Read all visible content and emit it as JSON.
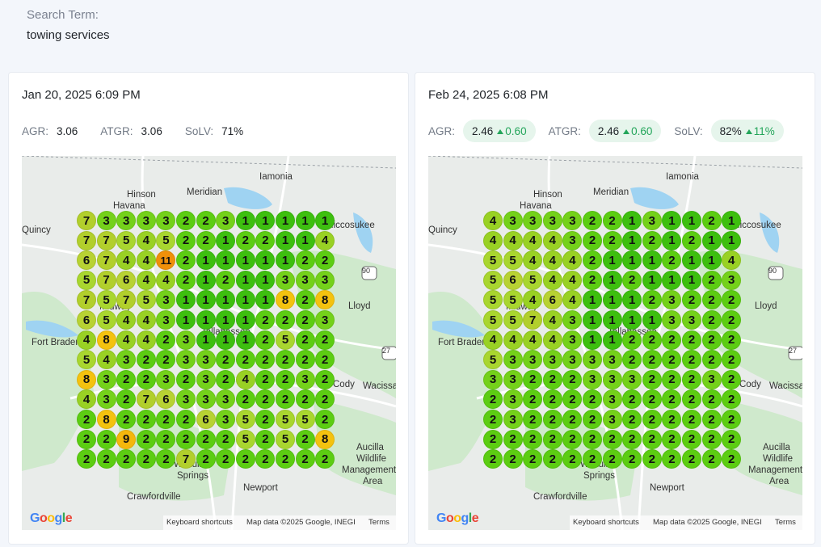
{
  "search": {
    "label": "Search Term:",
    "value": "towing services"
  },
  "panels": [
    {
      "date": "Jan 20, 2025 6:09 PM",
      "metrics": [
        {
          "label": "AGR:",
          "value": "3.06",
          "delta": ""
        },
        {
          "label": "ATGR:",
          "value": "3.06",
          "delta": ""
        },
        {
          "label": "SoLV:",
          "value": "71%",
          "delta": ""
        }
      ],
      "grid": [
        [
          7,
          3,
          3,
          3,
          3,
          2,
          2,
          3,
          1,
          1,
          1,
          1,
          1
        ],
        [
          7,
          7,
          5,
          4,
          5,
          2,
          2,
          1,
          2,
          2,
          1,
          1,
          4
        ],
        [
          6,
          7,
          4,
          4,
          11,
          2,
          1,
          1,
          1,
          1,
          1,
          2,
          2
        ],
        [
          5,
          7,
          6,
          4,
          4,
          2,
          1,
          2,
          1,
          1,
          3,
          3,
          3
        ],
        [
          7,
          5,
          7,
          5,
          3,
          1,
          1,
          1,
          1,
          1,
          8,
          2,
          8
        ],
        [
          6,
          5,
          4,
          4,
          3,
          1,
          1,
          1,
          1,
          2,
          2,
          2,
          3
        ],
        [
          4,
          8,
          4,
          4,
          2,
          3,
          1,
          1,
          1,
          2,
          5,
          2,
          2
        ],
        [
          5,
          4,
          3,
          2,
          2,
          3,
          3,
          2,
          2,
          2,
          2,
          2,
          2
        ],
        [
          8,
          3,
          2,
          2,
          3,
          2,
          3,
          2,
          4,
          2,
          2,
          3,
          2
        ],
        [
          4,
          3,
          2,
          7,
          6,
          3,
          3,
          3,
          2,
          2,
          2,
          2,
          2
        ],
        [
          2,
          8,
          2,
          2,
          2,
          2,
          6,
          3,
          5,
          2,
          5,
          5,
          2
        ],
        [
          2,
          2,
          9,
          2,
          2,
          2,
          2,
          2,
          5,
          2,
          5,
          2,
          8
        ],
        [
          2,
          2,
          2,
          2,
          2,
          7,
          2,
          2,
          2,
          2,
          2,
          2,
          2
        ]
      ]
    },
    {
      "date": "Feb 24, 2025 6:08 PM",
      "metrics": [
        {
          "label": "AGR:",
          "value": "2.46",
          "delta": "0.60"
        },
        {
          "label": "ATGR:",
          "value": "2.46",
          "delta": "0.60"
        },
        {
          "label": "SoLV:",
          "value": "82%",
          "delta": "11%"
        }
      ],
      "grid": [
        [
          4,
          3,
          3,
          3,
          3,
          2,
          2,
          1,
          3,
          1,
          1,
          2,
          1
        ],
        [
          4,
          4,
          4,
          4,
          3,
          2,
          2,
          1,
          2,
          1,
          2,
          1,
          1
        ],
        [
          5,
          5,
          4,
          4,
          4,
          2,
          1,
          1,
          1,
          2,
          1,
          1,
          4
        ],
        [
          5,
          6,
          5,
          4,
          4,
          2,
          1,
          2,
          1,
          1,
          1,
          2,
          3
        ],
        [
          5,
          5,
          4,
          6,
          4,
          1,
          1,
          1,
          2,
          3,
          2,
          2,
          2
        ],
        [
          5,
          5,
          7,
          4,
          3,
          1,
          1,
          1,
          1,
          3,
          3,
          2,
          2
        ],
        [
          4,
          4,
          4,
          4,
          3,
          1,
          1,
          2,
          2,
          2,
          2,
          2,
          2
        ],
        [
          5,
          3,
          3,
          3,
          3,
          3,
          3,
          2,
          2,
          2,
          2,
          2,
          2
        ],
        [
          3,
          3,
          2,
          2,
          2,
          3,
          3,
          3,
          2,
          2,
          2,
          3,
          2
        ],
        [
          2,
          3,
          2,
          2,
          2,
          2,
          3,
          2,
          2,
          2,
          2,
          2,
          2
        ],
        [
          2,
          3,
          2,
          2,
          2,
          2,
          3,
          2,
          2,
          2,
          2,
          2,
          2
        ],
        [
          2,
          2,
          2,
          2,
          2,
          2,
          2,
          2,
          2,
          2,
          2,
          2,
          2
        ],
        [
          2,
          2,
          2,
          2,
          2,
          2,
          2,
          2,
          2,
          2,
          2,
          2,
          2
        ]
      ]
    }
  ],
  "map": {
    "places": [
      "Iamonia",
      "Hinson",
      "Havana",
      "Meridian",
      "Miccosukee",
      "Quincy",
      "Lloyd",
      "Midway",
      "Tallahassee",
      "Fort Braden",
      "Cody",
      "Wacissa",
      "Aucilla",
      "Wildlife",
      "Management",
      "Area",
      "Wakulla",
      "Springs",
      "Newport",
      "Crawfordville"
    ],
    "logo": "Google",
    "attribution": {
      "shortcuts": "Keyboard shortcuts",
      "data": "Map data ©2025 Google, INEGI",
      "terms": "Terms"
    },
    "shields": [
      "90",
      "27"
    ]
  },
  "colors": {
    "rank_1": "#3dbf0f",
    "rank_2": "#5ccd12",
    "rank_3": "#74d11a",
    "rank_4": "#99d124",
    "rank_5": "#a9d62f",
    "rank_6": "#b8d233",
    "rank_7": "#b2cf2c",
    "rank_8": "#f4c20f",
    "rank_9": "#f4b70c",
    "rank_10": "#f2a20a",
    "rank_11": "#f0900a",
    "accent_green": "#23a55a"
  }
}
